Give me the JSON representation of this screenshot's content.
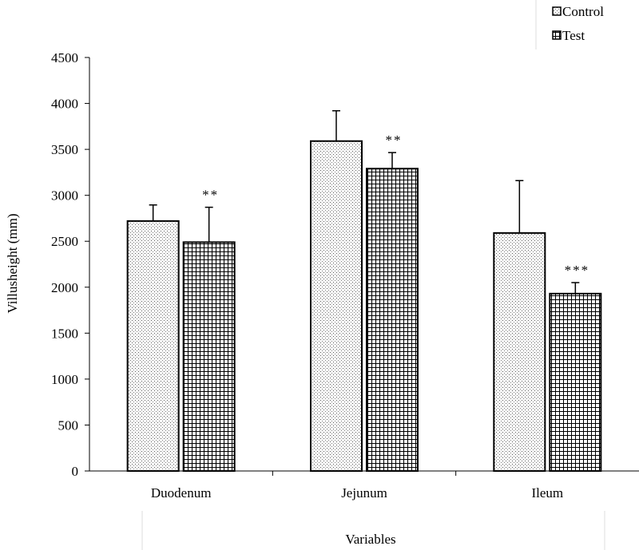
{
  "chart_data": {
    "type": "bar",
    "categories": [
      "Duodenum",
      "Jejunum",
      "Ileum"
    ],
    "series": [
      {
        "name": "Control",
        "values": [
          2720,
          3590,
          2590
        ],
        "errors": [
          175,
          330,
          570
        ],
        "pattern": "dots"
      },
      {
        "name": "Test",
        "values": [
          2490,
          3290,
          1930
        ],
        "errors": [
          380,
          175,
          120
        ],
        "pattern": "grid"
      }
    ],
    "annotations": [
      "**",
      "**",
      "***"
    ],
    "xlabel": "Variables",
    "ylabel": "Villusheight (mm)",
    "ylim": [
      0,
      4500
    ],
    "yticks": [
      "0",
      "500",
      "1000",
      "1500",
      "2000",
      "2500",
      "3000",
      "3500",
      "4000",
      "4500"
    ],
    "legend_position": "top-right",
    "grid": false
  }
}
